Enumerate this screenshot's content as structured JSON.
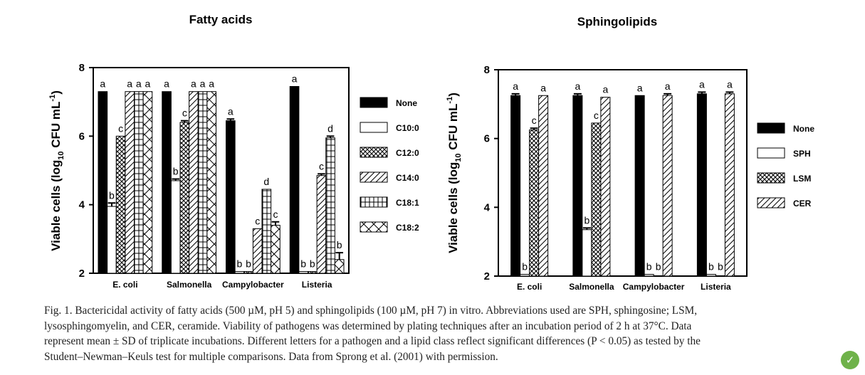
{
  "figure": {
    "caption_lines": [
      "Fig. 1.  Bactericidal activity of fatty acids (500 µM, pH 5) and sphingolipids (100 µM, pH 7) in vitro. Abbreviations used are SPH, sphingosine; LSM,",
      "lysosphingomyelin, and CER, ceramide. Viability of pathogens was determined by plating techniques after an incubation period of 2 h at 37°C. Data",
      "represent mean ± SD of triplicate incubations. Different letters for a pathogen and a lipid class reflect significant differences (P < 0.05) as tested by the",
      "Student–Newman–Keuls test for multiple comparisons. Data from Sprong et al. (2001) with permission."
    ],
    "badge_icon": "leaf-check-icon",
    "badge_color": "#6fb24a"
  },
  "chart_data": [
    {
      "type": "bar",
      "title": "Fatty acids",
      "ylabel": "Viable cells (log10 CFU mL-1)",
      "ylabel_main": "Viable cells (log",
      "ylabel_sub": "10",
      "ylabel_mid": " CFU mL",
      "ylabel_sup": "-1",
      "ylabel_end": ")",
      "ylim": [
        2,
        8
      ],
      "yticks": [
        "2",
        "4",
        "6",
        "8"
      ],
      "categories": [
        "E. coli",
        "Salmonella",
        "Campylobacter",
        "Listeria"
      ],
      "legend_position": "right",
      "series": [
        {
          "name": "None",
          "pattern": "solid",
          "values": [
            7.3,
            7.3,
            6.45,
            7.45
          ],
          "errors": [
            0,
            0,
            0.05,
            0
          ],
          "letters": [
            "a",
            "a",
            "a",
            "a"
          ]
        },
        {
          "name": "C10:0",
          "pattern": "empty",
          "values": [
            3.95,
            4.7,
            2.05,
            2.05
          ],
          "errors": [
            0.1,
            0.05,
            0,
            0
          ],
          "letters": [
            "b",
            "b",
            "b",
            "b"
          ]
        },
        {
          "name": "C12:0",
          "pattern": "cross",
          "values": [
            6.0,
            6.4,
            2.05,
            2.05
          ],
          "errors": [
            0,
            0.05,
            0,
            0
          ],
          "letters": [
            "c",
            "c",
            "b",
            "b"
          ]
        },
        {
          "name": "C14:0",
          "pattern": "diag",
          "values": [
            7.3,
            7.3,
            3.3,
            4.85
          ],
          "errors": [
            0,
            0,
            0,
            0.05
          ],
          "letters": [
            "a",
            "a",
            "c",
            "c"
          ]
        },
        {
          "name": "C18:1",
          "pattern": "grid",
          "values": [
            7.3,
            7.3,
            4.45,
            5.95
          ],
          "errors": [
            0,
            0,
            0,
            0.05
          ],
          "letters": [
            "a",
            "a",
            "d",
            "d"
          ]
        },
        {
          "name": "C18:2",
          "pattern": "xcross",
          "values": [
            7.3,
            7.3,
            3.4,
            2.4
          ],
          "errors": [
            0,
            0,
            0.1,
            0.2
          ],
          "letters": [
            "a",
            "a",
            "c",
            "b"
          ]
        }
      ]
    },
    {
      "type": "bar",
      "title": "Sphingolipids",
      "ylabel": "Viable cells (log10 CFU mL-1)",
      "ylabel_main": "Viable cells (log",
      "ylabel_sub": "10",
      "ylabel_mid": " CFU mL",
      "ylabel_sup": "-1",
      "ylabel_end": ")",
      "ylim": [
        2,
        8
      ],
      "yticks": [
        "2",
        "4",
        "6",
        "8"
      ],
      "categories": [
        "E. coli",
        "Salmonella",
        "Campylobacter",
        "Listeria"
      ],
      "legend_position": "right",
      "series": [
        {
          "name": "None",
          "pattern": "solid",
          "values": [
            7.25,
            7.25,
            7.25,
            7.3
          ],
          "errors": [
            0.05,
            0.05,
            0,
            0.05
          ],
          "letters": [
            "a",
            "a",
            "a",
            "a"
          ]
        },
        {
          "name": "SPH",
          "pattern": "empty",
          "values": [
            2.05,
            3.35,
            2.05,
            2.05
          ],
          "errors": [
            0,
            0.05,
            0,
            0
          ],
          "letters": [
            "b",
            "b",
            "b",
            "b"
          ]
        },
        {
          "name": "LSM",
          "pattern": "cross",
          "values": [
            6.25,
            6.45,
            null,
            null
          ],
          "errors": [
            0.05,
            0,
            0,
            0
          ],
          "letters": [
            "c",
            "c",
            "b",
            "b"
          ]
        },
        {
          "name": "CER",
          "pattern": "diag",
          "values": [
            7.25,
            7.2,
            7.25,
            7.3
          ],
          "errors": [
            0,
            0,
            0.05,
            0.05
          ],
          "letters": [
            "a",
            "a",
            "a",
            "a"
          ]
        }
      ]
    }
  ]
}
